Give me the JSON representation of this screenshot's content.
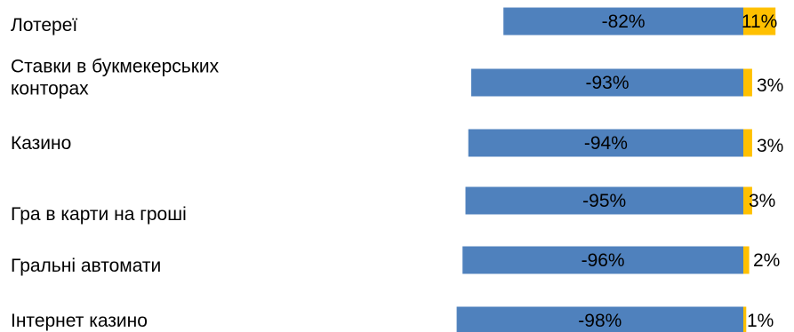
{
  "chart_data": {
    "type": "bar",
    "orientation": "horizontal",
    "stacked": "diverging",
    "categories": [
      [
        "Лотереї"
      ],
      [
        "Ставки в букмекерських",
        "конторах"
      ],
      [
        "Казино"
      ],
      [
        "Гра в карти на гроші"
      ],
      [
        "Гральні автомати"
      ],
      [
        "Інтернет казино"
      ]
    ],
    "series": [
      {
        "values": [
          -82,
          -93,
          -94,
          -95,
          -96,
          -98
        ],
        "labels": [
          "-82%",
          "-93%",
          "-94%",
          "-95%",
          "-96%",
          "-98%"
        ],
        "color": "#4F81BD"
      },
      {
        "values": [
          11,
          3,
          3,
          3,
          2,
          1
        ],
        "labels": [
          "11%",
          "3%",
          "3%",
          "3%",
          "2%",
          "1%"
        ],
        "color": "#FFC000"
      }
    ],
    "grid": false,
    "legend": "none"
  }
}
